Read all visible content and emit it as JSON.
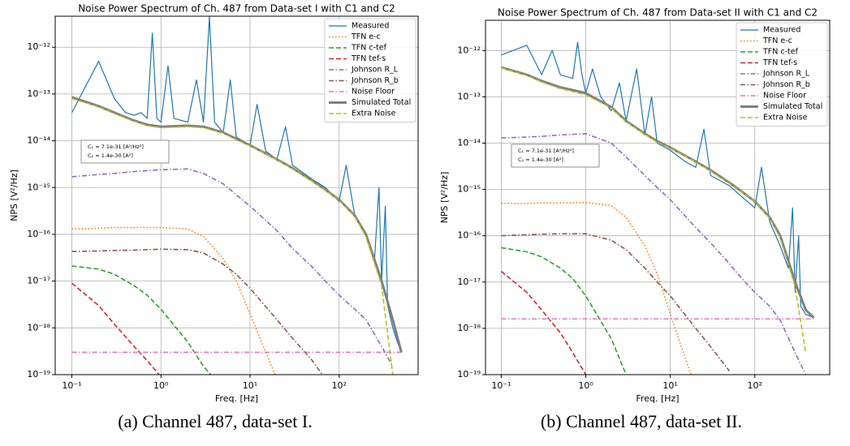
{
  "chart_data": [
    {
      "type": "line",
      "title": "Noise Power Spectrum of Ch. 487 from Data-set I with C1 and C2",
      "caption": "(a) Channel 487, data-set I.",
      "xlabel": "Freq. [Hz]",
      "ylabel": "NPS [V²/Hz]",
      "log_x": true,
      "log_y": true,
      "grid": true,
      "legend": "upper right",
      "annotation": [
        "C₁ = 7.1e-31 [A²/Hz²]",
        "C₂ = 1.4e-30 [A²]"
      ],
      "xlim": [
        0.065,
        770
      ],
      "ylim": [
        1e-19,
        4.6e-12
      ],
      "xticks": [
        {
          "value": 0.1,
          "label": "10⁻¹"
        },
        {
          "value": 1,
          "label": "10⁰"
        },
        {
          "value": 10,
          "label": "10¹"
        },
        {
          "value": 100,
          "label": "10²"
        }
      ],
      "yticks": [
        {
          "value": 1e-19,
          "label": "10⁻¹⁹"
        },
        {
          "value": 1e-18,
          "label": "10⁻¹⁸"
        },
        {
          "value": 1e-17,
          "label": "10⁻¹⁷"
        },
        {
          "value": 1e-16,
          "label": "10⁻¹⁶"
        },
        {
          "value": 1e-15,
          "label": "10⁻¹⁵"
        },
        {
          "value": 1e-14,
          "label": "10⁻¹⁴"
        },
        {
          "value": 1e-13,
          "label": "10⁻¹³"
        },
        {
          "value": 1e-12,
          "label": "10⁻¹²"
        }
      ],
      "x": [
        0.1,
        0.2,
        0.3,
        0.5,
        0.7,
        1,
        2,
        3,
        5,
        7,
        10,
        20,
        30,
        50,
        70,
        100,
        150,
        200,
        300,
        400,
        500
      ],
      "series": [
        {
          "name": "Measured",
          "color": "#1f77b4",
          "dash": "solid",
          "width": 1.2,
          "x": [
            0.1,
            0.2,
            0.3,
            0.4,
            0.5,
            0.6,
            0.7,
            0.8,
            0.9,
            1,
            1.2,
            1.4,
            2,
            2.5,
            3,
            3.5,
            4,
            5,
            6,
            7,
            10,
            12,
            15,
            20,
            25,
            30,
            50,
            70,
            100,
            120,
            150,
            200,
            250,
            280,
            300,
            330,
            350,
            400,
            450,
            500
          ],
          "values": [
            4e-14,
            5e-13,
            8e-14,
            4e-14,
            3.5e-14,
            4e-14,
            3e-14,
            2e-12,
            3e-14,
            2.5e-14,
            4e-13,
            3e-14,
            2.5e-14,
            2e-13,
            2.5e-14,
            4.5e-12,
            2.5e-14,
            1.5e-14,
            2e-13,
            1.2e-14,
            8e-15,
            6e-14,
            6e-15,
            4e-15,
            2e-14,
            3e-15,
            1.5e-15,
            1e-15,
            5e-16,
            3e-15,
            2.5e-16,
            1e-16,
            3e-17,
            1e-15,
            1e-17,
            4e-16,
            3e-18,
            1e-18,
            5e-19,
            3e-19
          ]
        },
        {
          "name": "TFN e-c",
          "color": "#ff7f0e",
          "dash": "dotted",
          "width": 1.6,
          "values": [
            1.3e-16,
            1.35e-16,
            1.4e-16,
            1.4e-16,
            1.4e-16,
            1.4e-16,
            1.3e-16,
            9e-17,
            3e-17,
            1e-17,
            2e-18,
            8e-20,
            null,
            null,
            null,
            null,
            null,
            null,
            null,
            null,
            null
          ]
        },
        {
          "name": "TFN c-tef",
          "color": "#2ca02c",
          "dash": "dashed",
          "width": 1.6,
          "values": [
            2.1e-17,
            1.8e-17,
            1.4e-17,
            8e-18,
            5e-18,
            2.5e-18,
            5e-19,
            1.5e-19,
            5e-20,
            null,
            null,
            null,
            null,
            null,
            null,
            null,
            null,
            null,
            null,
            null,
            null
          ]
        },
        {
          "name": "TFN tef-s",
          "color": "#d62728",
          "dash": "dashed",
          "width": 1.6,
          "values": [
            9e-18,
            3e-18,
            1.2e-18,
            4e-19,
            2e-19,
            9e-20,
            null,
            null,
            null,
            null,
            null,
            null,
            null,
            null,
            null,
            null,
            null,
            null,
            null,
            null,
            null
          ]
        },
        {
          "name": "Johnson R_L",
          "color": "#9467bd",
          "dash": "dashdot",
          "width": 1.6,
          "values": [
            1.7e-15,
            1.9e-15,
            2e-15,
            2.2e-15,
            2.3e-15,
            2.4e-15,
            2.5e-15,
            2e-15,
            1.2e-15,
            7e-16,
            4e-16,
            1.2e-16,
            5e-17,
            2e-17,
            1e-17,
            5e-18,
            2.5e-18,
            1.5e-18,
            4e-19,
            1.5e-19,
            null
          ]
        },
        {
          "name": "Johnson R_b",
          "color": "#8c564b",
          "dash": "dashdot",
          "width": 1.6,
          "values": [
            4.3e-17,
            4.4e-17,
            4.5e-17,
            4.6e-17,
            4.7e-17,
            4.8e-17,
            4.7e-17,
            4e-17,
            2.3e-17,
            1.4e-17,
            7e-18,
            1.5e-18,
            6e-19,
            2e-19,
            8e-20,
            null,
            null,
            null,
            null,
            null,
            null
          ]
        },
        {
          "name": "Noise Floor",
          "color": "#e377c2",
          "dash": "dashdot",
          "width": 1.6,
          "values": [
            3e-19,
            3e-19,
            3e-19,
            3e-19,
            3e-19,
            3e-19,
            3e-19,
            3e-19,
            3e-19,
            3e-19,
            3e-19,
            3e-19,
            3e-19,
            3e-19,
            3e-19,
            3e-19,
            3e-19,
            3e-19,
            3e-19,
            3e-19,
            3e-19
          ]
        },
        {
          "name": "Simulated Total",
          "color": "#7f7f7f",
          "dash": "solid",
          "width": 3,
          "values": [
            8.5e-14,
            5.5e-14,
            4e-14,
            2.7e-14,
            2.2e-14,
            2e-14,
            2.1e-14,
            2e-14,
            1.5e-14,
            1.1e-14,
            8e-15,
            4e-15,
            2.6e-15,
            1.4e-15,
            9e-16,
            5.5e-16,
            2.5e-16,
            1e-16,
            1e-17,
            1.5e-18,
            3e-19
          ]
        },
        {
          "name": "Extra Noise",
          "color": "#bcbd22",
          "dash": "dashed",
          "width": 1.6,
          "values": [
            8e-14,
            5.3e-14,
            3.8e-14,
            2.6e-14,
            2.1e-14,
            1.9e-14,
            2e-14,
            1.9e-14,
            1.45e-14,
            1.05e-14,
            7.8e-15,
            3.9e-15,
            2.5e-15,
            1.35e-15,
            8.8e-16,
            5.4e-16,
            2.4e-16,
            9e-17,
            8e-18,
            1e-19,
            null
          ]
        }
      ]
    },
    {
      "type": "line",
      "title": "Noise Power Spectrum of Ch. 487 from Data-set II with C1 and C2",
      "caption": "(b) Channel 487, data-set II.",
      "xlabel": "Freq. [Hz]",
      "ylabel": "NPS [V²/Hz]",
      "log_x": true,
      "log_y": true,
      "grid": true,
      "legend": "upper right",
      "annotation": [
        "C₁ = 7.1e-31 [A²/Hz²]",
        "C₂ = 1.4e-30 [A²]"
      ],
      "xlim": [
        0.065,
        770
      ],
      "ylim": [
        1e-19,
        4.5e-12
      ],
      "xticks": [
        {
          "value": 0.1,
          "label": "10⁻¹"
        },
        {
          "value": 1,
          "label": "10⁰"
        },
        {
          "value": 10,
          "label": "10¹"
        },
        {
          "value": 100,
          "label": "10²"
        }
      ],
      "yticks": [
        {
          "value": 1e-19,
          "label": "10⁻¹⁹"
        },
        {
          "value": 1e-18,
          "label": "10⁻¹⁸"
        },
        {
          "value": 1e-17,
          "label": "10⁻¹⁷"
        },
        {
          "value": 1e-16,
          "label": "10⁻¹⁶"
        },
        {
          "value": 1e-15,
          "label": "10⁻¹⁵"
        },
        {
          "value": 1e-14,
          "label": "10⁻¹⁴"
        },
        {
          "value": 1e-13,
          "label": "10⁻¹³"
        },
        {
          "value": 1e-12,
          "label": "10⁻¹²"
        }
      ],
      "x": [
        0.1,
        0.2,
        0.3,
        0.5,
        0.7,
        1,
        2,
        3,
        5,
        7,
        10,
        20,
        30,
        50,
        70,
        100,
        150,
        200,
        300,
        400,
        500
      ],
      "series": [
        {
          "name": "Measured",
          "color": "#1f77b4",
          "dash": "solid",
          "width": 1.2,
          "x": [
            0.1,
            0.2,
            0.3,
            0.4,
            0.5,
            0.7,
            0.8,
            0.9,
            1,
            1.2,
            1.5,
            2,
            2.5,
            3,
            4,
            5,
            6,
            7,
            10,
            15,
            20,
            25,
            30,
            50,
            70,
            100,
            120,
            150,
            200,
            250,
            280,
            300,
            330,
            350,
            400,
            500
          ],
          "values": [
            8e-13,
            1.3e-12,
            3e-13,
            1e-12,
            3e-13,
            2.5e-13,
            1.5e-12,
            3e-13,
            1.2e-13,
            4e-13,
            1e-13,
            5e-14,
            2e-13,
            3e-14,
            4e-13,
            1.5e-14,
            1e-13,
            1e-14,
            7e-15,
            4e-15,
            3e-15,
            2e-14,
            2e-15,
            1.2e-15,
            7e-16,
            4e-16,
            3e-15,
            2e-16,
            6e-17,
            2e-17,
            4e-16,
            6e-18,
            1e-16,
            3e-18,
            2e-18,
            1.7e-18
          ]
        },
        {
          "name": "TFN e-c",
          "color": "#ff7f0e",
          "dash": "dotted",
          "width": 1.6,
          "values": [
            5e-16,
            5e-16,
            5.1e-16,
            5.1e-16,
            5.2e-16,
            5.2e-16,
            4.5e-16,
            2.5e-16,
            6e-17,
            1.5e-17,
            2e-18,
            5e-20,
            null,
            null,
            null,
            null,
            null,
            null,
            null,
            null,
            null
          ]
        },
        {
          "name": "TFN c-tef",
          "color": "#2ca02c",
          "dash": "dashed",
          "width": 1.6,
          "values": [
            5.5e-17,
            4.5e-17,
            3.5e-17,
            2e-17,
            1.2e-17,
            5e-18,
            6e-19,
            1e-19,
            null,
            null,
            null,
            null,
            null,
            null,
            null,
            null,
            null,
            null,
            null,
            null,
            null
          ]
        },
        {
          "name": "TFN tef-s",
          "color": "#d62728",
          "dash": "dashed",
          "width": 1.6,
          "values": [
            1.7e-17,
            6e-18,
            2.5e-18,
            8e-19,
            3e-19,
            1e-19,
            null,
            null,
            null,
            null,
            null,
            null,
            null,
            null,
            null,
            null,
            null,
            null,
            null,
            null,
            null
          ]
        },
        {
          "name": "Johnson R_L",
          "color": "#9467bd",
          "dash": "dashdot",
          "width": 1.6,
          "values": [
            1.3e-14,
            1.35e-14,
            1.4e-14,
            1.5e-14,
            1.55e-14,
            1.6e-14,
            1e-14,
            5e-15,
            2e-15,
            1.1e-15,
            6e-16,
            1.5e-16,
            7e-17,
            2.5e-17,
            1.2e-17,
            6e-18,
            3e-18,
            1.5e-18,
            3e-19,
            1e-19,
            null
          ]
        },
        {
          "name": "Johnson R_b",
          "color": "#8c564b",
          "dash": "dashdot",
          "width": 1.6,
          "values": [
            1e-16,
            1.05e-16,
            1.08e-16,
            1.1e-16,
            1.1e-16,
            1.1e-16,
            8e-17,
            5e-17,
            2e-17,
            1e-17,
            5e-18,
            1e-18,
            4e-19,
            1.2e-19,
            null,
            null,
            null,
            null,
            null,
            null,
            null
          ]
        },
        {
          "name": "Noise Floor",
          "color": "#e377c2",
          "dash": "dashdot",
          "width": 1.6,
          "values": [
            1.6e-18,
            1.6e-18,
            1.6e-18,
            1.6e-18,
            1.6e-18,
            1.6e-18,
            1.6e-18,
            1.6e-18,
            1.6e-18,
            1.6e-18,
            1.6e-18,
            1.6e-18,
            1.6e-18,
            1.6e-18,
            1.6e-18,
            1.6e-18,
            1.6e-18,
            1.6e-18,
            1.6e-18,
            1.6e-18,
            1.6e-18
          ]
        },
        {
          "name": "Simulated Total",
          "color": "#7f7f7f",
          "dash": "solid",
          "width": 3,
          "values": [
            4.3e-13,
            3e-13,
            2.2e-13,
            1.6e-13,
            1.4e-13,
            1.2e-13,
            6e-14,
            3e-14,
            1.6e-14,
            1.1e-14,
            8e-15,
            4e-15,
            2.6e-15,
            1.4e-15,
            9e-16,
            5.5e-16,
            2.5e-16,
            1e-16,
            1e-17,
            2.5e-18,
            1.7e-18
          ]
        },
        {
          "name": "Extra Noise",
          "color": "#bcbd22",
          "dash": "dashed",
          "width": 1.6,
          "values": [
            4.2e-13,
            2.9e-13,
            2.1e-13,
            1.5e-13,
            1.3e-13,
            1.1e-13,
            5.8e-14,
            2.9e-14,
            1.55e-14,
            1.05e-14,
            7.8e-15,
            3.9e-15,
            2.5e-15,
            1.35e-15,
            8.8e-16,
            5.4e-16,
            2.4e-16,
            9e-17,
            8e-18,
            3e-19,
            null
          ]
        }
      ]
    }
  ]
}
